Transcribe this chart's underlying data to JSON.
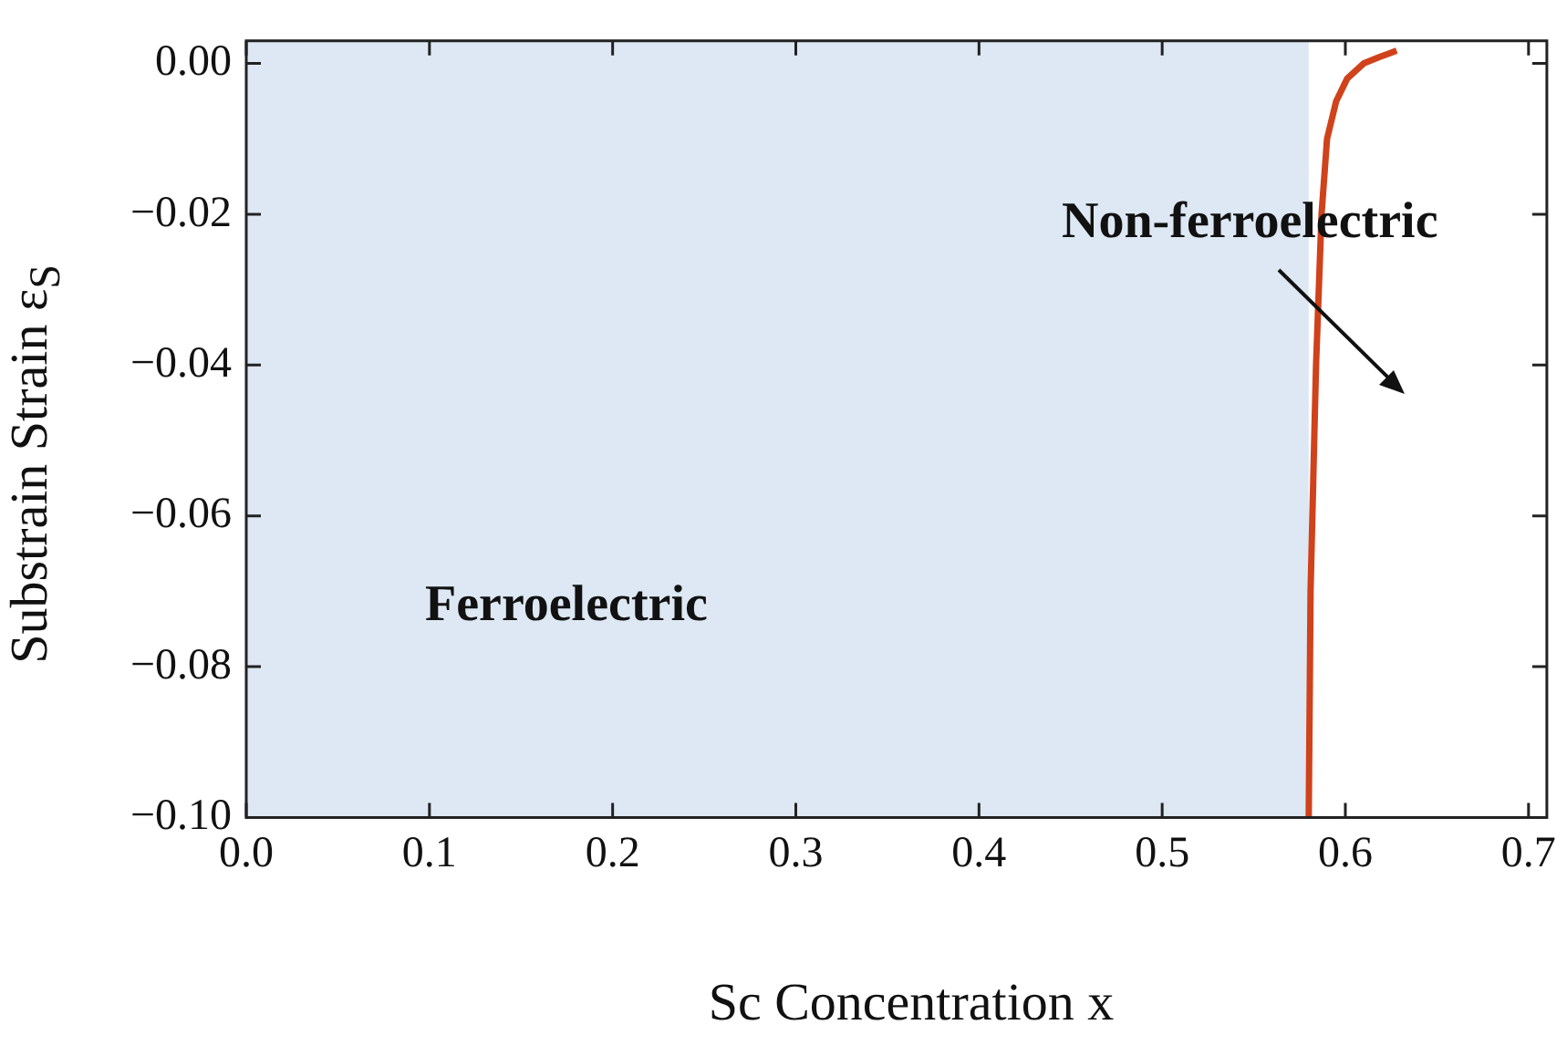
{
  "chart_data": {
    "type": "line",
    "xlabel": "Sc Concentration x",
    "ylabel": "Substrain Strain ε$_{S}$",
    "series": [
      {
        "color": "#d0421b",
        "x": [
          0.58,
          0.581,
          0.584,
          0.587,
          0.59,
          0.595,
          0.601,
          0.61,
          0.618,
          0.628
        ],
        "values": [
          -0.1,
          -0.07,
          -0.04,
          -0.02,
          -0.01,
          -0.005,
          -0.002,
          0,
          0.0008,
          0.0017
        ]
      }
    ],
    "xlim": [
      0,
      0.71
    ],
    "ylim": [
      -0.1,
      0.003
    ],
    "xticks": [
      {
        "value": 0,
        "label": "0.0"
      },
      0.1,
      0.2,
      0.3,
      0.4,
      0.5,
      0.6,
      0.7
    ],
    "yticks": [
      {
        "value": -0.1,
        "label": "−0.10"
      },
      {
        "value": -0.08,
        "label": "−0.08"
      },
      {
        "value": -0.06,
        "label": "−0.06"
      },
      {
        "value": -0.04,
        "label": "−0.04"
      },
      {
        "value": -0.02,
        "label": "−0.02"
      },
      {
        "value": 0,
        "label": "0.00"
      }
    ],
    "bands": [
      {
        "axis": "x",
        "from": 0,
        "to": 0.58,
        "color": "#dde8f4"
      }
    ],
    "annotations": [
      "Ferroelectric",
      "Non-ferroelectric"
    ],
    "grid": false,
    "legend": false,
    "line_style": "solid",
    "marker": "none"
  }
}
